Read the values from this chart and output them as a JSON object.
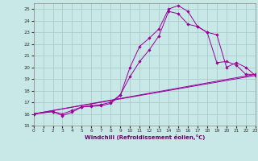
{
  "xlabel": "Windchill (Refroidissement éolien,°C)",
  "bg_color": "#c8e8e8",
  "grid_color": "#aacccc",
  "line_color": "#990099",
  "xlim": [
    0,
    23
  ],
  "ylim": [
    15,
    25.5
  ],
  "yticks": [
    15,
    16,
    17,
    18,
    19,
    20,
    21,
    22,
    23,
    24,
    25
  ],
  "xticks": [
    0,
    1,
    2,
    3,
    4,
    5,
    6,
    7,
    8,
    9,
    10,
    11,
    12,
    13,
    14,
    15,
    16,
    17,
    18,
    19,
    20,
    21,
    22,
    23
  ],
  "curve1_x": [
    0,
    2,
    3,
    4,
    5,
    6,
    7,
    8,
    9,
    10,
    11,
    12,
    13,
    14,
    15,
    16,
    17,
    18,
    19,
    20,
    21,
    22,
    23
  ],
  "curve1_y": [
    16.0,
    16.2,
    15.85,
    16.15,
    16.6,
    16.65,
    16.7,
    16.9,
    17.6,
    20.0,
    21.8,
    22.5,
    23.3,
    25.0,
    25.3,
    24.8,
    23.5,
    23.0,
    20.4,
    20.5,
    20.2,
    19.4,
    19.4
  ],
  "curve2_x": [
    0,
    2,
    3,
    4,
    5,
    6,
    7,
    8,
    9,
    10,
    11,
    12,
    13,
    14,
    15,
    16,
    17,
    18,
    19,
    20,
    21,
    22,
    23
  ],
  "curve2_y": [
    16.0,
    16.2,
    16.0,
    16.3,
    16.6,
    16.7,
    16.8,
    17.0,
    17.65,
    19.2,
    20.5,
    21.5,
    22.7,
    24.8,
    24.6,
    23.7,
    23.5,
    23.0,
    22.8,
    20.0,
    20.4,
    20.0,
    19.3
  ],
  "line1_x": [
    0,
    23
  ],
  "line1_y": [
    16.0,
    19.3
  ],
  "line2_x": [
    0,
    23
  ],
  "line2_y": [
    16.0,
    19.4
  ]
}
